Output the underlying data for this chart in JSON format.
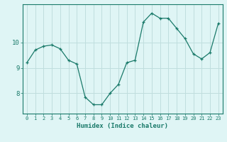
{
  "xlabel": "Humidex (Indice chaleur)",
  "ylabel": "",
  "x_values": [
    0,
    1,
    2,
    3,
    4,
    5,
    6,
    7,
    8,
    9,
    10,
    11,
    12,
    13,
    14,
    15,
    16,
    17,
    18,
    19,
    20,
    21,
    22,
    23
  ],
  "y_values": [
    9.2,
    9.7,
    9.85,
    9.9,
    9.75,
    9.3,
    9.15,
    7.85,
    7.55,
    7.55,
    8.0,
    8.35,
    9.2,
    9.3,
    10.8,
    11.15,
    10.95,
    10.95,
    10.55,
    10.15,
    9.55,
    9.35,
    9.6,
    10.75
  ],
  "line_color": "#1a7a6a",
  "marker": "+",
  "marker_size": 3.5,
  "bg_color": "#dff5f5",
  "grid_color": "#c0dede",
  "axis_color": "#1a7a6a",
  "tick_color": "#1a7a6a",
  "label_color": "#1a7a6a",
  "ylim": [
    7.2,
    11.5
  ],
  "yticks": [
    8,
    9,
    10
  ],
  "xlim": [
    -0.5,
    23.5
  ],
  "xticks": [
    0,
    1,
    2,
    3,
    4,
    5,
    6,
    7,
    8,
    9,
    10,
    11,
    12,
    13,
    14,
    15,
    16,
    17,
    18,
    19,
    20,
    21,
    22,
    23
  ],
  "tick_fontsize": 5.0,
  "xlabel_fontsize": 6.5,
  "ytick_fontsize": 6.5
}
